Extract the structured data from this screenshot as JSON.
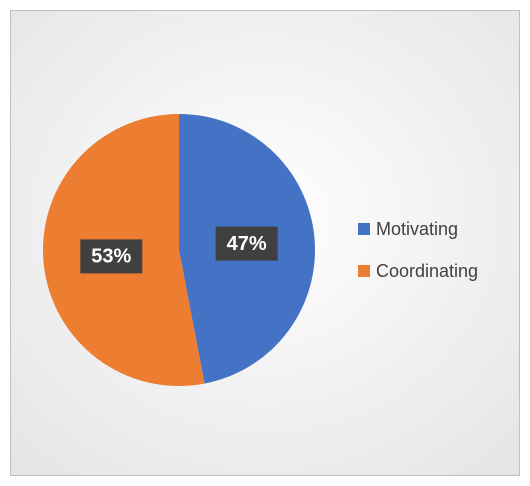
{
  "chart_data": {
    "type": "pie",
    "categories": [
      "Motivating",
      "Coordinating"
    ],
    "values": [
      47,
      53
    ],
    "value_labels": [
      "47%",
      "53%"
    ],
    "colors": [
      "#4472c4",
      "#ed7d31"
    ],
    "legend": "right"
  }
}
